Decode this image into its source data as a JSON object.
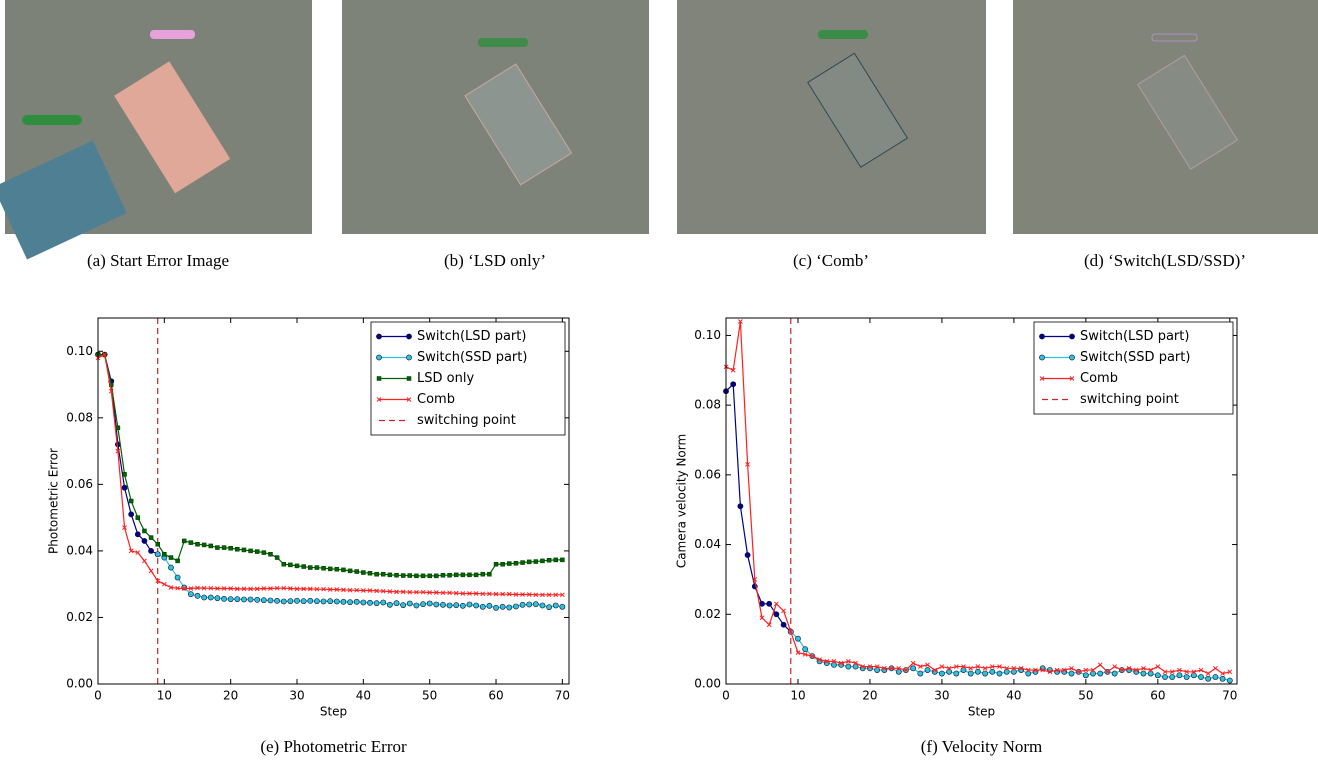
{
  "images": [
    {
      "caption": "(a) Start Error Image"
    },
    {
      "caption": "(b) ‘LSD only’"
    },
    {
      "caption": "(c) ‘Comb’"
    },
    {
      "caption": "(d) ‘Switch(LSD/SSD)’"
    }
  ],
  "chart_data": [
    {
      "type": "line",
      "caption": "(e) Photometric Error",
      "x_label": "Step",
      "y_label": "Photometric Error",
      "x": [
        0,
        1,
        2,
        3,
        4,
        5,
        6,
        7,
        8,
        9,
        10,
        11,
        12,
        13,
        14,
        15,
        16,
        17,
        18,
        19,
        20,
        21,
        22,
        23,
        24,
        25,
        26,
        27,
        28,
        29,
        30,
        31,
        32,
        33,
        34,
        35,
        36,
        37,
        38,
        39,
        40,
        41,
        42,
        43,
        44,
        45,
        46,
        47,
        48,
        49,
        50,
        51,
        52,
        53,
        54,
        55,
        56,
        57,
        58,
        59,
        60,
        61,
        62,
        63,
        64,
        65,
        66,
        67,
        68,
        69,
        70
      ],
      "xlim": [
        0,
        71
      ],
      "xticks": [
        0,
        10,
        20,
        30,
        40,
        50,
        60,
        70
      ],
      "ylim": [
        0,
        0.11
      ],
      "yticks": [
        {
          "value": 0,
          "label": "0.00"
        },
        {
          "value": 0.02,
          "label": "0.02"
        },
        {
          "value": 0.04,
          "label": "0.04"
        },
        {
          "value": 0.06,
          "label": "0.06"
        },
        {
          "value": 0.08,
          "label": "0.08"
        },
        {
          "value": 0.1,
          "label": "0.10"
        }
      ],
      "legend": "upper right",
      "series": [
        {
          "name": "Switch(LSD part)",
          "color": "#00008b",
          "marker": "circle",
          "values": [
            0.099,
            0.099,
            0.091,
            0.072,
            0.059,
            0.051,
            0.045,
            0.043,
            0.04,
            0.039,
            null,
            null,
            null,
            null,
            null,
            null,
            null,
            null,
            null,
            null,
            null,
            null,
            null,
            null,
            null,
            null,
            null,
            null,
            null,
            null,
            null,
            null,
            null,
            null,
            null,
            null,
            null,
            null,
            null,
            null,
            null,
            null,
            null,
            null,
            null,
            null,
            null,
            null,
            null,
            null,
            null,
            null,
            null,
            null,
            null,
            null,
            null,
            null,
            null,
            null,
            null,
            null,
            null,
            null,
            null,
            null,
            null,
            null,
            null,
            null,
            null
          ]
        },
        {
          "name": "Switch(SSD part)",
          "color": "#2fc0dc",
          "marker": "circle",
          "values": [
            null,
            null,
            null,
            null,
            null,
            null,
            null,
            null,
            null,
            0.039,
            0.038,
            0.035,
            0.032,
            0.029,
            0.027,
            0.0265,
            0.026,
            0.026,
            0.0258,
            0.0256,
            0.0255,
            0.0255,
            0.0254,
            0.0254,
            0.0253,
            0.0252,
            0.0251,
            0.025,
            0.0248,
            0.0249,
            0.025,
            0.0249,
            0.025,
            0.0249,
            0.0248,
            0.0249,
            0.0248,
            0.0247,
            0.0246,
            0.0247,
            0.0245,
            0.0244,
            0.0243,
            0.0245,
            0.0238,
            0.0243,
            0.0237,
            0.0242,
            0.0236,
            0.024,
            0.0242,
            0.0239,
            0.0238,
            0.0236,
            0.0237,
            0.0235,
            0.0239,
            0.0236,
            0.0232,
            0.0235,
            0.0229,
            0.0232,
            0.023,
            0.0233,
            0.0238,
            0.0239,
            0.024,
            0.0236,
            0.0231,
            0.0236,
            0.0232
          ]
        },
        {
          "name": "LSD only",
          "color": "#006400",
          "marker": "square",
          "values": [
            0.099,
            0.099,
            0.09,
            0.077,
            0.063,
            0.055,
            0.05,
            0.046,
            0.044,
            0.042,
            0.039,
            0.038,
            0.037,
            0.043,
            0.0425,
            0.042,
            0.0418,
            0.0415,
            0.041,
            0.041,
            0.0408,
            0.0405,
            0.0403,
            0.04,
            0.0398,
            0.0395,
            0.039,
            0.038,
            0.036,
            0.0358,
            0.0355,
            0.0353,
            0.035,
            0.035,
            0.0348,
            0.0346,
            0.0345,
            0.0343,
            0.034,
            0.0338,
            0.0335,
            0.0333,
            0.033,
            0.033,
            0.0328,
            0.0327,
            0.0326,
            0.0326,
            0.0325,
            0.0325,
            0.0325,
            0.0325,
            0.0327,
            0.0327,
            0.0328,
            0.0328,
            0.0328,
            0.0328,
            0.033,
            0.033,
            0.036,
            0.036,
            0.0362,
            0.0363,
            0.0365,
            0.0367,
            0.0368,
            0.037,
            0.0372,
            0.0373,
            0.0373
          ]
        },
        {
          "name": "Comb",
          "color": "#ff2020",
          "marker": "x",
          "values": [
            0.098,
            0.099,
            0.088,
            0.07,
            0.047,
            0.04,
            0.0395,
            0.037,
            0.034,
            0.031,
            0.03,
            0.029,
            0.0288,
            0.0287,
            0.0287,
            0.0289,
            0.0288,
            0.0288,
            0.0287,
            0.0287,
            0.0287,
            0.0286,
            0.0286,
            0.0286,
            0.0286,
            0.0287,
            0.0287,
            0.0288,
            0.0288,
            0.0287,
            0.0286,
            0.0286,
            0.0286,
            0.0285,
            0.0285,
            0.0284,
            0.0284,
            0.0283,
            0.0282,
            0.0282,
            0.0281,
            0.0281,
            0.028,
            0.0279,
            0.0278,
            0.0277,
            0.0277,
            0.0276,
            0.0276,
            0.0276,
            0.0275,
            0.0275,
            0.0274,
            0.0274,
            0.0273,
            0.0272,
            0.0272,
            0.0272,
            0.0271,
            0.0271,
            0.027,
            0.027,
            0.027,
            0.0269,
            0.0269,
            0.0269,
            0.0268,
            0.0268,
            0.0268,
            0.0268,
            0.0268
          ]
        }
      ],
      "vlines": [
        {
          "name": "switching point",
          "x": 9,
          "color": "#c0282d"
        }
      ]
    },
    {
      "type": "line",
      "caption": "(f) Velocity Norm",
      "x_label": "Step",
      "y_label": "Camera velocity Norm",
      "x": [
        0,
        1,
        2,
        3,
        4,
        5,
        6,
        7,
        8,
        9,
        10,
        11,
        12,
        13,
        14,
        15,
        16,
        17,
        18,
        19,
        20,
        21,
        22,
        23,
        24,
        25,
        26,
        27,
        28,
        29,
        30,
        31,
        32,
        33,
        34,
        35,
        36,
        37,
        38,
        39,
        40,
        41,
        42,
        43,
        44,
        45,
        46,
        47,
        48,
        49,
        50,
        51,
        52,
        53,
        54,
        55,
        56,
        57,
        58,
        59,
        60,
        61,
        62,
        63,
        64,
        65,
        66,
        67,
        68,
        69,
        70
      ],
      "xlim": [
        0,
        71
      ],
      "xticks": [
        0,
        10,
        20,
        30,
        40,
        50,
        60,
        70
      ],
      "ylim": [
        0,
        0.105
      ],
      "yticks": [
        {
          "value": 0,
          "label": "0.00"
        },
        {
          "value": 0.02,
          "label": "0.02"
        },
        {
          "value": 0.04,
          "label": "0.04"
        },
        {
          "value": 0.06,
          "label": "0.06"
        },
        {
          "value": 0.08,
          "label": "0.08"
        },
        {
          "value": 0.1,
          "label": "0.10"
        }
      ],
      "legend": "upper right",
      "series": [
        {
          "name": "Switch(LSD part)",
          "color": "#00008b",
          "marker": "circle",
          "values": [
            0.084,
            0.086,
            0.051,
            0.037,
            0.028,
            0.023,
            0.023,
            0.02,
            0.017,
            0.015,
            null,
            null,
            null,
            null,
            null,
            null,
            null,
            null,
            null,
            null,
            null,
            null,
            null,
            null,
            null,
            null,
            null,
            null,
            null,
            null,
            null,
            null,
            null,
            null,
            null,
            null,
            null,
            null,
            null,
            null,
            null,
            null,
            null,
            null,
            null,
            null,
            null,
            null,
            null,
            null,
            null,
            null,
            null,
            null,
            null,
            null,
            null,
            null,
            null,
            null,
            null,
            null,
            null,
            null,
            null,
            null,
            null,
            null,
            null,
            null,
            null
          ]
        },
        {
          "name": "Switch(SSD part)",
          "color": "#2fc0dc",
          "marker": "circle",
          "values": [
            null,
            null,
            null,
            null,
            null,
            null,
            null,
            null,
            null,
            0.015,
            0.013,
            0.01,
            0.008,
            0.0065,
            0.006,
            0.0055,
            0.0055,
            0.005,
            0.005,
            0.0045,
            0.0045,
            0.004,
            0.004,
            0.0045,
            0.0035,
            0.004,
            0.0045,
            0.003,
            0.004,
            0.0035,
            0.003,
            0.0035,
            0.003,
            0.004,
            0.003,
            0.0035,
            0.003,
            0.0035,
            0.003,
            0.0035,
            0.0035,
            0.004,
            0.003,
            0.0035,
            0.0045,
            0.004,
            0.0035,
            0.0035,
            0.003,
            0.0035,
            0.0025,
            0.003,
            0.003,
            0.0035,
            0.003,
            0.004,
            0.004,
            0.0035,
            0.003,
            0.003,
            0.0025,
            0.002,
            0.002,
            0.0025,
            0.002,
            0.0025,
            0.002,
            0.0015,
            0.002,
            0.0015,
            0.001
          ]
        },
        {
          "name": "Comb",
          "color": "#ff2020",
          "marker": "x",
          "values": [
            0.091,
            0.09,
            0.104,
            0.063,
            0.03,
            0.019,
            0.017,
            0.023,
            0.021,
            0.015,
            0.009,
            0.0085,
            0.008,
            0.007,
            0.0065,
            0.0065,
            0.006,
            0.0065,
            0.006,
            0.005,
            0.005,
            0.005,
            0.0045,
            0.0045,
            0.0045,
            0.004,
            0.006,
            0.005,
            0.0055,
            0.004,
            0.005,
            0.0045,
            0.005,
            0.005,
            0.0045,
            0.005,
            0.0045,
            0.005,
            0.005,
            0.0045,
            0.0045,
            0.0045,
            0.004,
            0.004,
            0.004,
            0.0035,
            0.004,
            0.004,
            0.0045,
            0.0035,
            0.004,
            0.004,
            0.0055,
            0.0035,
            0.005,
            0.004,
            0.0045,
            0.004,
            0.0045,
            0.004,
            0.005,
            0.0035,
            0.0035,
            0.004,
            0.0035,
            0.0035,
            0.004,
            0.003,
            0.0045,
            0.003,
            0.0035
          ]
        }
      ],
      "vlines": [
        {
          "name": "switching point",
          "x": 9,
          "color": "#c0282d"
        }
      ]
    }
  ]
}
